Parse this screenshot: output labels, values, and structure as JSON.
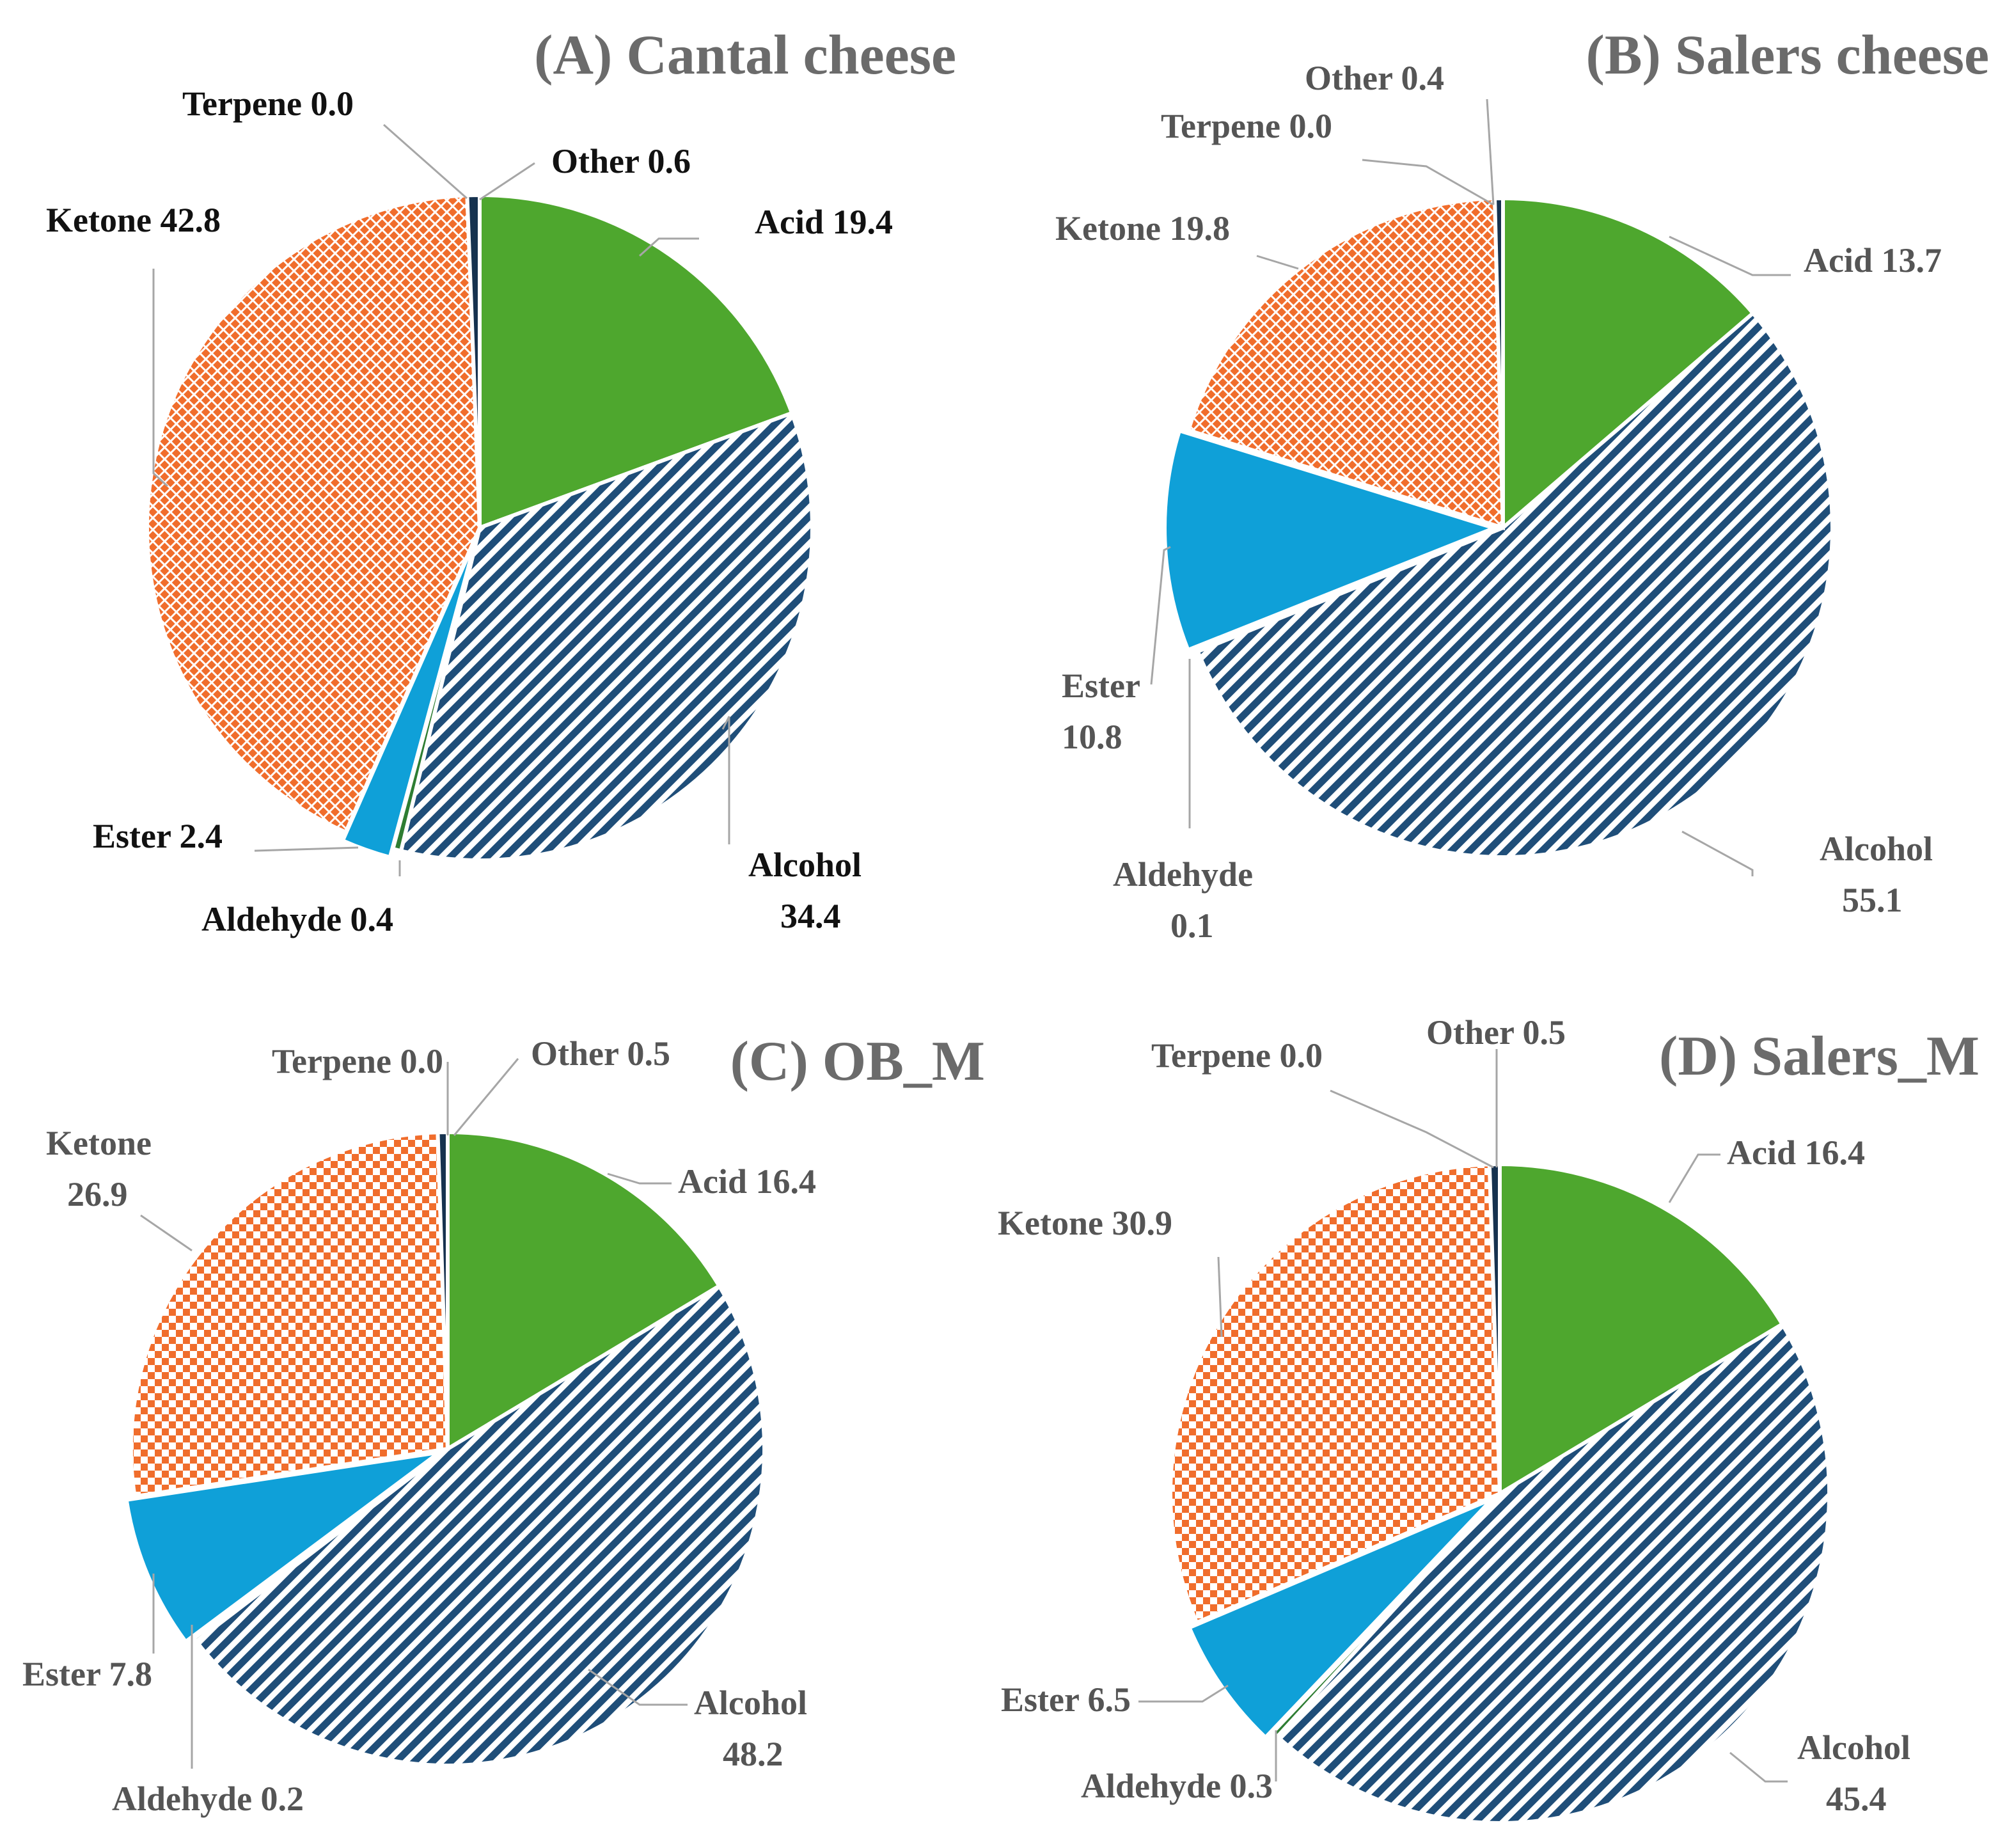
{
  "colors": {
    "acid": "#4ea72e",
    "alcohol": "#1f4e79",
    "aldehyde": "#2e7d32",
    "ester": "#0fa0d8",
    "ketone": "#f06d2c",
    "terpene": "#7f7f7f",
    "other": "#16324f"
  },
  "chart_data": [
    {
      "type": "pie",
      "title": "(A) Cantal cheese",
      "label_style": "dark",
      "slices": [
        {
          "name": "Acid",
          "value": 19.4,
          "label": "Acid 19.4"
        },
        {
          "name": "Alcohol",
          "value": 34.4,
          "label": "Alcohol",
          "label2": "34.4"
        },
        {
          "name": "Aldehyde",
          "value": 0.4,
          "label": "Aldehyde  0.4"
        },
        {
          "name": "Ester",
          "value": 2.4,
          "label": "Ester 2.4"
        },
        {
          "name": "Ketone",
          "value": 42.8,
          "label": "Ketone  42.8"
        },
        {
          "name": "Terpene",
          "value": 0.0,
          "label": "Terpene 0.0"
        },
        {
          "name": "Other",
          "value": 0.6,
          "label": "Other 0.6"
        }
      ]
    },
    {
      "type": "pie",
      "title": "(B) Salers cheese",
      "label_style": "grey",
      "slices": [
        {
          "name": "Acid",
          "value": 13.7,
          "label": "Acid 13.7"
        },
        {
          "name": "Alcohol",
          "value": 55.1,
          "label": "Alcohol",
          "label2": "55.1"
        },
        {
          "name": "Aldehyde",
          "value": 0.1,
          "label": "Aldehyde",
          "label2": "0.1"
        },
        {
          "name": "Ester",
          "value": 10.8,
          "label": "Ester",
          "label2": "10.8"
        },
        {
          "name": "Ketone",
          "value": 19.8,
          "label": "Ketone 19.8"
        },
        {
          "name": "Terpene",
          "value": 0.0,
          "label": "Terpene 0.0"
        },
        {
          "name": "Other",
          "value": 0.4,
          "label": "Other  0.4"
        }
      ]
    },
    {
      "type": "pie",
      "title": "(C) OB_M",
      "label_style": "grey",
      "slices": [
        {
          "name": "Acid",
          "value": 16.4,
          "label": "Acid 16.4"
        },
        {
          "name": "Alcohol",
          "value": 48.2,
          "label": "Alcohol",
          "label2": "48.2"
        },
        {
          "name": "Aldehyde",
          "value": 0.2,
          "label": "Aldehyde 0.2"
        },
        {
          "name": "Ester",
          "value": 7.8,
          "label": "Ester 7.8"
        },
        {
          "name": "Ketone",
          "value": 26.9,
          "label": "Ketone",
          "label2": "26.9"
        },
        {
          "name": "Terpene",
          "value": 0.0,
          "label": "Terpene 0.0"
        },
        {
          "name": "Other",
          "value": 0.5,
          "label": "Other 0.5"
        }
      ]
    },
    {
      "type": "pie",
      "title": "(D) Salers_M",
      "label_style": "grey",
      "slices": [
        {
          "name": "Acid",
          "value": 16.4,
          "label": "Acid 16.4"
        },
        {
          "name": "Alcohol",
          "value": 45.4,
          "label": "Alcohol",
          "label2": "45.4"
        },
        {
          "name": "Aldehyde",
          "value": 0.3,
          "label": "Aldehyde 0.3"
        },
        {
          "name": "Ester",
          "value": 6.5,
          "label": "Ester 6.5"
        },
        {
          "name": "Ketone",
          "value": 30.9,
          "label": "Ketone 30.9"
        },
        {
          "name": "Terpene",
          "value": 0.0,
          "label": "Terpene 0.0"
        },
        {
          "name": "Other",
          "value": 0.5,
          "label": "Other 0.5"
        }
      ]
    }
  ]
}
